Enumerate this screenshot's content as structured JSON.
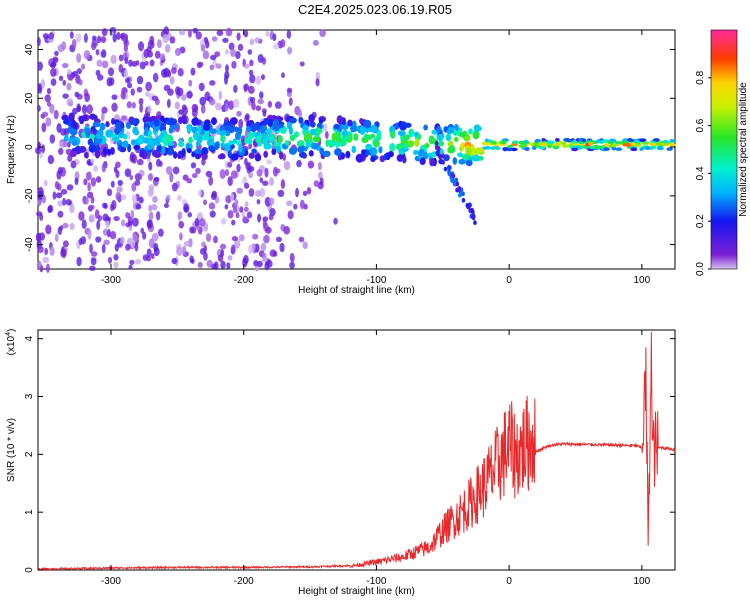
{
  "title": "C2E4.2025.023.06.19.R05",
  "colorbar": {
    "label": "Normalized spectral amplitude",
    "ticks": [
      "0.0",
      "0.2",
      "0.4",
      "0.6",
      "0.8"
    ],
    "tick_values": [
      0.0,
      0.2,
      0.4,
      0.6,
      0.8
    ],
    "range": [
      0,
      1
    ]
  },
  "chart_data": [
    {
      "type": "heatmap",
      "xlabel": "Height of straight line (km)",
      "ylabel": "Frequency (Hz)",
      "xlim": [
        -355,
        125
      ],
      "ylim": [
        -50,
        48
      ],
      "xticks": [
        -300,
        -200,
        -100,
        0,
        100
      ],
      "xtick_labels": [
        "-300",
        "-200",
        "-100",
        "0",
        "100"
      ],
      "yticks": [
        40,
        20,
        0,
        -20,
        -40
      ],
      "ytick_labels": [
        "40",
        "20",
        "0",
        "-20",
        "-40"
      ],
      "colormap": "rainbow (purple=0 to magenta=1)",
      "ridge": [
        {
          "x": -330,
          "f": 5,
          "a": 0.35
        },
        {
          "x": -300,
          "f": 4,
          "a": 0.4
        },
        {
          "x": -270,
          "f": 4,
          "a": 0.45
        },
        {
          "x": -240,
          "f": 4,
          "a": 0.45
        },
        {
          "x": -200,
          "f": 3,
          "a": 0.4
        },
        {
          "x": -170,
          "f": 4,
          "a": 0.5
        },
        {
          "x": -140,
          "f": 4,
          "a": 0.55
        },
        {
          "x": -110,
          "f": 3,
          "a": 0.5
        },
        {
          "x": -90,
          "f": 3,
          "a": 0.55
        },
        {
          "x": -70,
          "f": 2,
          "a": 0.6
        },
        {
          "x": -50,
          "f": 1,
          "a": 0.55
        },
        {
          "x": -30,
          "f": 1,
          "a": 0.9
        },
        {
          "x": 0,
          "f": 1,
          "a": 0.8
        },
        {
          "x": 30,
          "f": 1,
          "a": 0.75
        },
        {
          "x": 60,
          "f": 1,
          "a": 0.85
        },
        {
          "x": 90,
          "f": 1,
          "a": 0.8
        },
        {
          "x": 120,
          "f": 1,
          "a": 0.75
        }
      ]
    },
    {
      "type": "line",
      "xlabel": "Height of straight line (km)",
      "ylabel": "SNR (10 * v/v)",
      "y_exponent_label": "(x10",
      "y_exponent": "4",
      "xlim": [
        -355,
        125
      ],
      "ylim": [
        0,
        4.15
      ],
      "xticks": [
        -300,
        -200,
        -100,
        0,
        100
      ],
      "xtick_labels": [
        "-300",
        "-200",
        "-100",
        "0",
        "100"
      ],
      "yticks": [
        0,
        1,
        2,
        3,
        4
      ],
      "ytick_labels": [
        "0",
        "1",
        "2",
        "3",
        "4"
      ],
      "color": "#e8282a",
      "series": [
        {
          "x": [
            -355,
            -300,
            -250,
            -200,
            -150,
            -120,
            -100,
            -80,
            -60,
            -50,
            -40,
            -30,
            -20,
            -10,
            0,
            5,
            10,
            15,
            20,
            25,
            30,
            40,
            60,
            80,
            95,
            100,
            103,
            105,
            107,
            108,
            110,
            115,
            125
          ],
          "values": [
            0.0,
            0.02,
            0.03,
            0.03,
            0.04,
            0.06,
            0.12,
            0.2,
            0.35,
            0.6,
            0.8,
            1.0,
            1.25,
            1.55,
            1.9,
            1.75,
            1.85,
            1.95,
            2.05,
            2.1,
            2.15,
            2.18,
            2.17,
            2.16,
            2.15,
            2.12,
            3.3,
            0.3,
            4.1,
            2.0,
            2.1,
            2.12,
            2.08
          ]
        }
      ]
    }
  ]
}
